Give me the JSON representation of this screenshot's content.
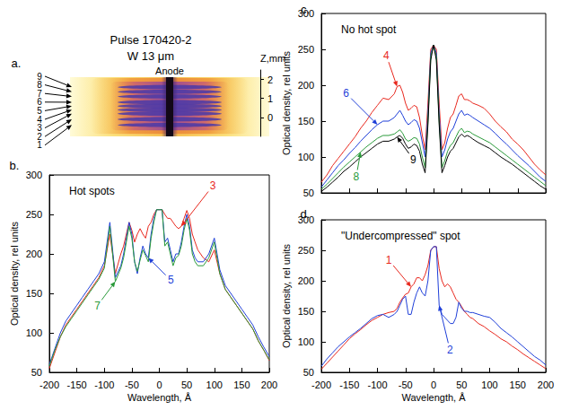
{
  "chart_data": [
    {
      "type": "image",
      "label": "a.",
      "title": "Pulse 170420-2",
      "subtitle": "W 13 μm",
      "annotation": "Anode",
      "ylabel": "Z,mm",
      "ylim": [
        -1,
        2.5
      ],
      "yticks": [
        0,
        1,
        2
      ],
      "rows": [
        {
          "label": "1",
          "z": -0.4
        },
        {
          "label": "2",
          "z": -0.1
        },
        {
          "label": "3",
          "z": 0.2
        },
        {
          "label": "4",
          "z": 0.4
        },
        {
          "label": "5",
          "z": 0.6
        },
        {
          "label": "6",
          "z": 0.8
        },
        {
          "label": "7",
          "z": 1.1
        },
        {
          "label": "8",
          "z": 1.35
        },
        {
          "label": "9",
          "z": 1.6
        }
      ]
    },
    {
      "type": "line",
      "label": "b.",
      "title": "Hot spots",
      "xlabel": "Wavelength, Å",
      "ylabel": "Optical density, rel units",
      "x": [
        -200,
        -190,
        -180,
        -170,
        -160,
        -150,
        -140,
        -130,
        -120,
        -110,
        -100,
        -90,
        -80,
        -70,
        -65,
        -60,
        -55,
        -50,
        -45,
        -40,
        -35,
        -30,
        -25,
        -20,
        -15,
        -10,
        -5,
        0,
        5,
        10,
        15,
        20,
        25,
        30,
        35,
        40,
        45,
        50,
        55,
        60,
        65,
        70,
        80,
        90,
        100,
        110,
        120,
        130,
        140,
        150,
        160,
        170,
        180,
        190,
        200
      ],
      "xlim": [
        -200,
        200
      ],
      "xticks": [
        -200,
        -150,
        -100,
        -50,
        0,
        50,
        100,
        150,
        200
      ],
      "ylim": [
        50,
        300
      ],
      "yticks": [
        50,
        100,
        150,
        200,
        250,
        300
      ],
      "grid": false,
      "series": [
        {
          "name": "3",
          "color": "#e8281e",
          "values": [
            55,
            75,
            95,
            110,
            120,
            130,
            140,
            150,
            160,
            170,
            185,
            225,
            175,
            200,
            210,
            225,
            240,
            230,
            215,
            225,
            232,
            225,
            220,
            235,
            240,
            250,
            256,
            256,
            256,
            250,
            245,
            245,
            240,
            235,
            232,
            235,
            245,
            255,
            245,
            225,
            215,
            205,
            195,
            190,
            205,
            175,
            155,
            145,
            135,
            125,
            115,
            105,
            90,
            78,
            65
          ]
        },
        {
          "name": "5",
          "color": "#1f3fd8",
          "values": [
            60,
            80,
            100,
            115,
            125,
            135,
            145,
            155,
            165,
            175,
            190,
            240,
            170,
            185,
            200,
            220,
            240,
            225,
            190,
            175,
            195,
            210,
            200,
            195,
            225,
            245,
            256,
            256,
            256,
            215,
            220,
            205,
            190,
            200,
            200,
            215,
            235,
            250,
            235,
            205,
            195,
            190,
            190,
            200,
            220,
            180,
            160,
            150,
            140,
            130,
            120,
            110,
            95,
            82,
            70
          ]
        },
        {
          "name": "7",
          "color": "#2a9a3a",
          "values": [
            58,
            78,
            95,
            108,
            118,
            128,
            138,
            148,
            158,
            168,
            182,
            235,
            165,
            182,
            195,
            215,
            235,
            220,
            190,
            178,
            192,
            205,
            198,
            190,
            220,
            240,
            256,
            256,
            256,
            210,
            215,
            200,
            185,
            195,
            198,
            210,
            230,
            245,
            230,
            200,
            190,
            185,
            185,
            195,
            215,
            175,
            155,
            145,
            135,
            125,
            115,
            105,
            90,
            78,
            66
          ]
        }
      ]
    },
    {
      "type": "line",
      "label": "c.",
      "title": "No hot spot",
      "ylabel": "Optical density, rel units",
      "x": [
        -200,
        -190,
        -180,
        -170,
        -160,
        -150,
        -140,
        -130,
        -120,
        -110,
        -100,
        -90,
        -80,
        -70,
        -65,
        -60,
        -55,
        -50,
        -45,
        -40,
        -35,
        -30,
        -25,
        -20,
        -15,
        -10,
        -5,
        0,
        5,
        10,
        15,
        20,
        25,
        30,
        35,
        40,
        45,
        50,
        55,
        60,
        65,
        70,
        80,
        90,
        100,
        110,
        120,
        130,
        140,
        150,
        160,
        170,
        180,
        190,
        200
      ],
      "xlim": [
        -200,
        200
      ],
      "xticks": [
        -200,
        -150,
        -100,
        -50,
        0,
        50,
        100,
        150,
        200
      ],
      "ylim": [
        50,
        300
      ],
      "yticks": [
        50,
        100,
        150,
        200,
        250,
        300
      ],
      "grid": false,
      "tick_labels": "y",
      "series": [
        {
          "name": "4",
          "color": "#e8281e",
          "values": [
            65,
            75,
            88,
            98,
            108,
            118,
            128,
            140,
            150,
            162,
            172,
            182,
            180,
            188,
            198,
            200,
            190,
            175,
            165,
            168,
            172,
            170,
            155,
            130,
            110,
            175,
            250,
            256,
            250,
            175,
            110,
            120,
            140,
            155,
            160,
            172,
            185,
            188,
            180,
            180,
            178,
            175,
            172,
            168,
            160,
            150,
            142,
            135,
            125,
            118,
            110,
            100,
            90,
            82,
            75
          ]
        },
        {
          "name": "6",
          "color": "#1f3fd8",
          "values": [
            58,
            68,
            78,
            88,
            96,
            105,
            113,
            122,
            130,
            138,
            145,
            150,
            150,
            155,
            160,
            165,
            158,
            150,
            145,
            148,
            152,
            150,
            140,
            120,
            100,
            160,
            245,
            256,
            245,
            160,
            100,
            110,
            125,
            135,
            140,
            150,
            160,
            165,
            158,
            160,
            158,
            155,
            150,
            145,
            140,
            133,
            125,
            118,
            110,
            102,
            95,
            88,
            80,
            72,
            66
          ]
        },
        {
          "name": "8",
          "color": "#2a9a3a",
          "values": [
            55,
            62,
            70,
            78,
            86,
            93,
            100,
            107,
            114,
            120,
            126,
            130,
            130,
            132,
            135,
            138,
            133,
            125,
            122,
            124,
            127,
            126,
            118,
            100,
            85,
            150,
            240,
            256,
            240,
            150,
            85,
            95,
            108,
            116,
            120,
            128,
            136,
            140,
            134,
            136,
            135,
            132,
            128,
            124,
            120,
            114,
            108,
            102,
            96,
            90,
            84,
            78,
            72,
            66,
            60
          ]
        },
        {
          "name": "9",
          "color": "#000000",
          "values": [
            52,
            58,
            65,
            72,
            80,
            86,
            93,
            100,
            106,
            112,
            118,
            122,
            122,
            125,
            128,
            130,
            126,
            118,
            112,
            114,
            118,
            116,
            108,
            90,
            78,
            145,
            235,
            256,
            235,
            145,
            78,
            88,
            100,
            108,
            112,
            120,
            128,
            132,
            128,
            130,
            128,
            125,
            120,
            116,
            112,
            106,
            100,
            95,
            90,
            84,
            78,
            72,
            66,
            60,
            55
          ]
        }
      ]
    },
    {
      "type": "line",
      "label": "d.",
      "title": "\"Undercompressed\" spot",
      "xlabel": "Wavelength, Å",
      "ylabel": "Optical density, rel units",
      "x": [
        -200,
        -190,
        -180,
        -170,
        -160,
        -150,
        -140,
        -130,
        -120,
        -110,
        -100,
        -90,
        -80,
        -70,
        -65,
        -60,
        -55,
        -50,
        -45,
        -40,
        -35,
        -30,
        -25,
        -20,
        -15,
        -10,
        -5,
        0,
        5,
        10,
        15,
        20,
        25,
        30,
        35,
        40,
        45,
        50,
        55,
        60,
        65,
        70,
        80,
        90,
        100,
        110,
        120,
        130,
        140,
        150,
        160,
        170,
        180,
        190,
        200
      ],
      "xlim": [
        -200,
        200
      ],
      "xticks": [
        -200,
        -150,
        -100,
        -50,
        0,
        50,
        100,
        150,
        200
      ],
      "ylim": [
        50,
        300
      ],
      "yticks": [
        50,
        100,
        150,
        200,
        250,
        300
      ],
      "grid": false,
      "series": [
        {
          "name": "1",
          "color": "#e8281e",
          "values": [
            55,
            65,
            75,
            85,
            95,
            105,
            113,
            120,
            128,
            135,
            140,
            145,
            148,
            150,
            155,
            165,
            172,
            178,
            180,
            190,
            195,
            205,
            205,
            200,
            210,
            225,
            250,
            256,
            256,
            220,
            200,
            190,
            195,
            190,
            180,
            170,
            165,
            158,
            150,
            145,
            140,
            138,
            130,
            125,
            118,
            112,
            105,
            100,
            93,
            87,
            80,
            74,
            68,
            62,
            56
          ]
        },
        {
          "name": "2",
          "color": "#1f3fd8",
          "values": [
            60,
            72,
            82,
            92,
            100,
            108,
            115,
            122,
            130,
            138,
            143,
            145,
            140,
            145,
            150,
            160,
            170,
            175,
            145,
            145,
            165,
            180,
            190,
            180,
            175,
            200,
            250,
            256,
            256,
            160,
            145,
            140,
            135,
            130,
            130,
            140,
            165,
            155,
            150,
            150,
            148,
            148,
            145,
            142,
            140,
            132,
            122,
            115,
            108,
            100,
            92,
            84,
            76,
            70,
            62
          ]
        }
      ]
    }
  ]
}
